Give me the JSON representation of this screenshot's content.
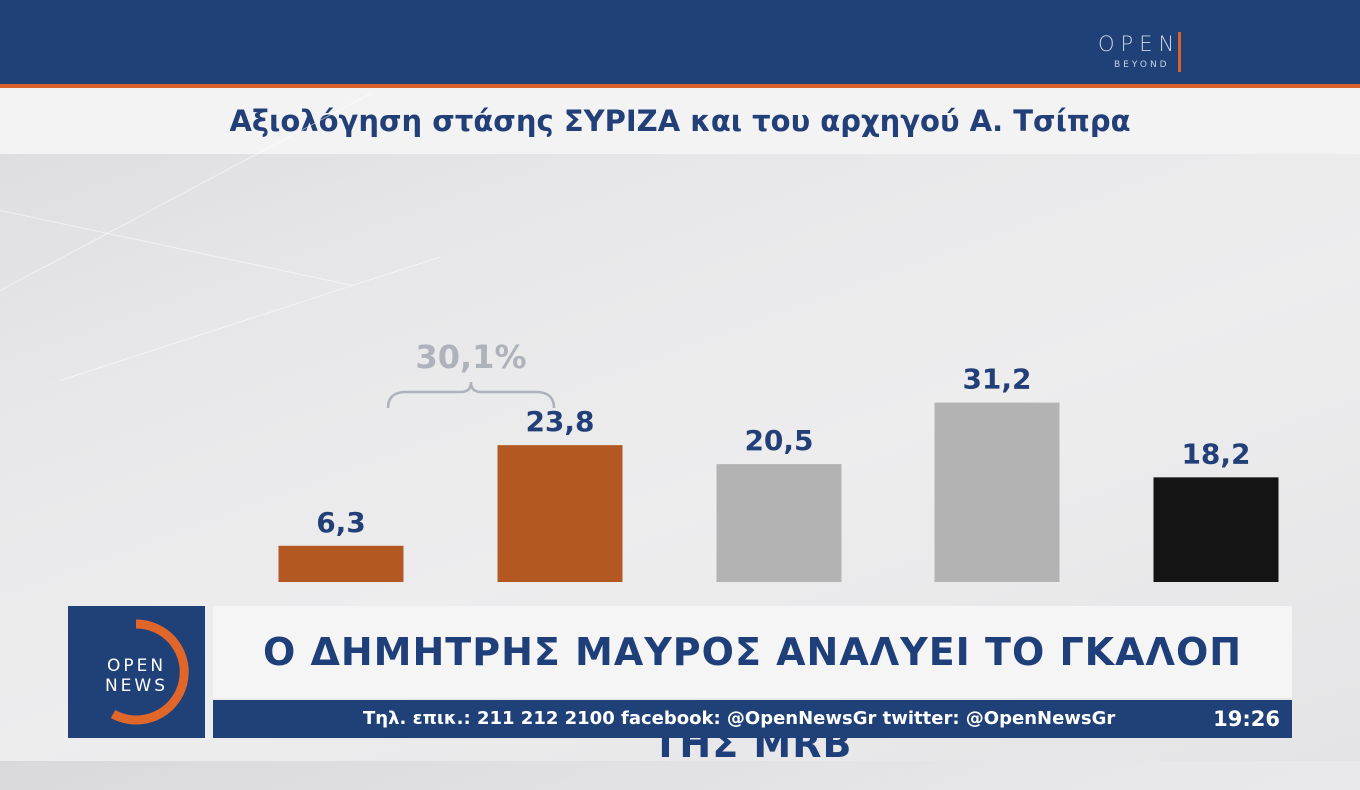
{
  "channel": {
    "top_logo": {
      "word": "OPEN",
      "sub": "BEYOND"
    },
    "corner_logo": {
      "line1": "OPEN",
      "line2": "NEWS"
    }
  },
  "headline": "Ο ΔΗΜΗΤΡΗΣ ΜΑΥΡΟΣ ΑΝΑΛΥΕΙ ΤΟ ΓΚΑΛΟΠ ΤΗΣ MRB",
  "ticker": {
    "info": "Τηλ. επικ.: 211 212 2100 facebook: @OpenNewsGr twitter: @OpenNewsGr",
    "time": "19:26"
  },
  "colors": {
    "navy": "#1f4178",
    "orange_accent": "#d9622b",
    "bar_orange": "#b35822",
    "bar_gray": "#b3b3b3",
    "bar_black": "#141414",
    "label_navy": "#233f78"
  },
  "chart_data": {
    "type": "bar",
    "title": "Αξιολόγηση στάσης ΣΥΡΙΖΑ και του αρχηγού Α. Τσίπρα",
    "categories": [
      "",
      "",
      "",
      "",
      ""
    ],
    "values": [
      6.3,
      23.8,
      20.5,
      31.2,
      18.2
    ],
    "value_labels": [
      "6,3",
      "23,8",
      "20,5",
      "31,2",
      "18,2"
    ],
    "bar_colors": [
      "#b35822",
      "#b35822",
      "#b3b3b3",
      "#b3b3b3",
      "#141414"
    ],
    "ylim": [
      0,
      35
    ],
    "grid": false,
    "bracket": {
      "spans": [
        0,
        1
      ],
      "label": "30,1%"
    }
  }
}
